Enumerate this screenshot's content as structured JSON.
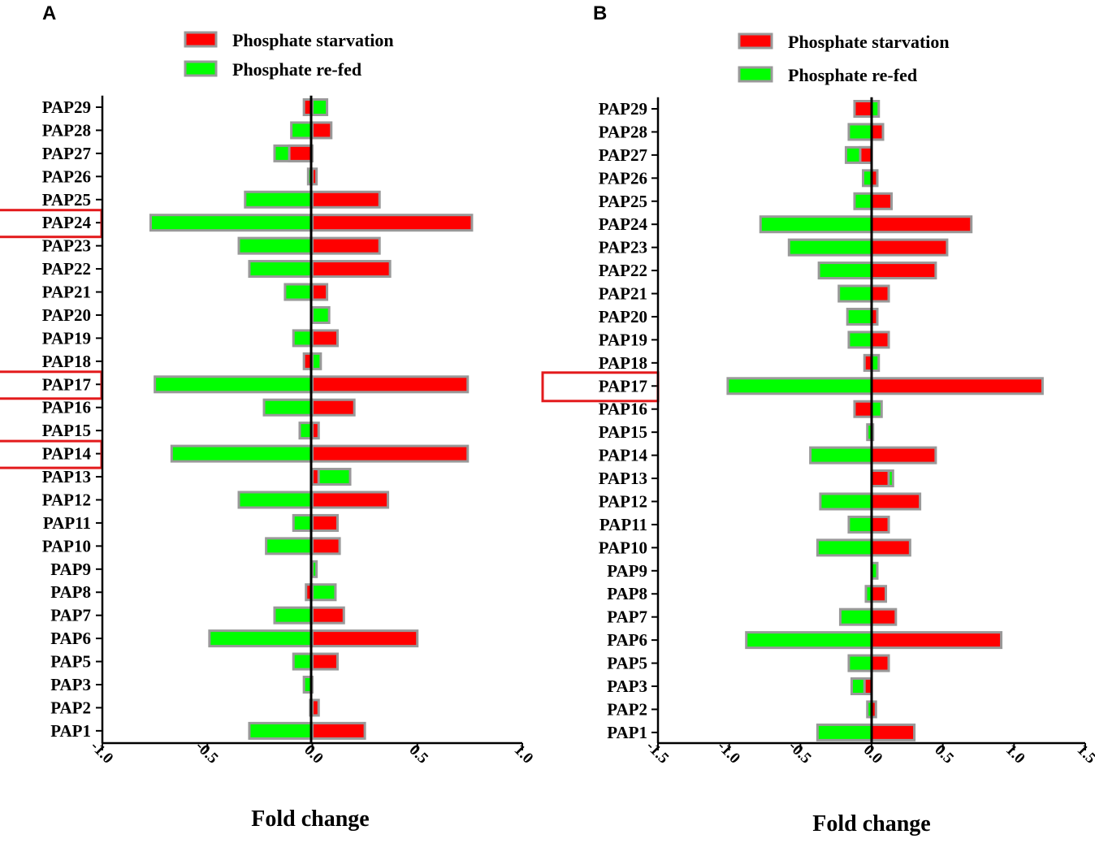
{
  "colors": {
    "starvation": "#ff0000",
    "refed": "#00ff00",
    "bar_outline": "#999999",
    "highlight": "#e31a1c"
  },
  "chart_data": [
    {
      "panel": "A",
      "type": "bar",
      "orientation": "horizontal",
      "xlabel": "Fold change",
      "xlim": [
        -1.0,
        1.0
      ],
      "xticks": [
        "-1.0",
        "-0.5",
        "0.0",
        "0.5",
        "1.0"
      ],
      "legend": [
        "Phosphate starvation",
        "Phosphate re-fed"
      ],
      "legend_position": "top-center",
      "categories": [
        "PAP29",
        "PAP28",
        "PAP27",
        "PAP26",
        "PAP25",
        "PAP24",
        "PAP23",
        "PAP22",
        "PAP21",
        "PAP20",
        "PAP19",
        "PAP18",
        "PAP17",
        "PAP16",
        "PAP15",
        "PAP14",
        "PAP13",
        "PAP12",
        "PAP11",
        "PAP10",
        "PAP9",
        "PAP8",
        "PAP7",
        "PAP6",
        "PAP5",
        "PAP3",
        "PAP2",
        "PAP1"
      ],
      "highlighted": [
        "PAP24",
        "PAP17",
        "PAP14"
      ],
      "series": [
        {
          "name": "Phosphate starvation",
          "values": [
            -0.04,
            0.09,
            -0.11,
            0.02,
            0.32,
            0.76,
            0.32,
            0.37,
            0.07,
            0.0,
            0.12,
            -0.04,
            0.74,
            0.2,
            0.03,
            0.74,
            0.03,
            0.36,
            0.12,
            0.13,
            0.0,
            -0.03,
            0.15,
            0.5,
            0.12,
            0.0,
            0.03,
            0.25
          ]
        },
        {
          "name": "Phosphate re-fed",
          "values": [
            0.07,
            -0.1,
            -0.18,
            -0.02,
            -0.32,
            -0.77,
            -0.35,
            -0.3,
            -0.13,
            0.08,
            -0.09,
            0.04,
            -0.75,
            -0.23,
            -0.06,
            -0.67,
            0.18,
            -0.35,
            -0.09,
            -0.22,
            0.02,
            0.11,
            -0.18,
            -0.49,
            -0.09,
            -0.04,
            -0.01,
            -0.3
          ]
        }
      ]
    },
    {
      "panel": "B",
      "type": "bar",
      "orientation": "horizontal",
      "xlabel": "Fold change",
      "xlim": [
        -1.5,
        1.5
      ],
      "xticks": [
        "-1.5",
        "-1.0",
        "-0.5",
        "0.0",
        "0.5",
        "1.0",
        "1.5"
      ],
      "legend": [
        "Phosphate starvation",
        "Phosphate re-fed"
      ],
      "legend_position": "top-center",
      "categories": [
        "PAP29",
        "PAP28",
        "PAP27",
        "PAP26",
        "PAP25",
        "PAP24",
        "PAP23",
        "PAP22",
        "PAP21",
        "PAP20",
        "PAP19",
        "PAP18",
        "PAP17",
        "PAP16",
        "PAP15",
        "PAP14",
        "PAP13",
        "PAP12",
        "PAP11",
        "PAP10",
        "PAP9",
        "PAP8",
        "PAP7",
        "PAP6",
        "PAP5",
        "PAP3",
        "PAP2",
        "PAP1"
      ],
      "highlighted": [
        "PAP17"
      ],
      "series": [
        {
          "name": "Phosphate starvation",
          "values": [
            -0.12,
            0.08,
            -0.08,
            0.04,
            0.14,
            0.7,
            0.53,
            0.45,
            0.12,
            0.04,
            0.12,
            -0.05,
            1.2,
            -0.12,
            0.01,
            0.45,
            0.12,
            0.34,
            0.12,
            0.27,
            0.0,
            0.1,
            0.17,
            0.91,
            0.12,
            -0.05,
            0.03,
            0.3
          ]
        },
        {
          "name": "Phosphate re-fed",
          "values": [
            0.05,
            -0.16,
            -0.18,
            -0.06,
            -0.12,
            -0.78,
            -0.58,
            -0.37,
            -0.23,
            -0.17,
            -0.16,
            0.05,
            -1.01,
            0.07,
            -0.03,
            -0.43,
            0.15,
            -0.36,
            -0.16,
            -0.38,
            0.04,
            -0.04,
            -0.22,
            -0.88,
            -0.16,
            -0.14,
            -0.03,
            -0.38
          ]
        }
      ]
    }
  ]
}
